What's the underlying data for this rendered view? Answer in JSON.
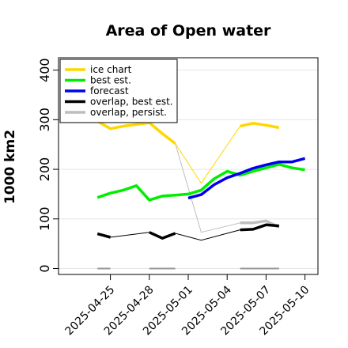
{
  "chart_data": {
    "type": "line",
    "title": "Area of Open water",
    "xlabel": "",
    "ylabel": "1000 km2",
    "ylim": [
      -12,
      425
    ],
    "yticks": [
      0,
      100,
      200,
      300,
      400
    ],
    "x_start": "2025-04-21",
    "xlim": [
      "2025-04-21",
      "2025-05-11"
    ],
    "xticks": [
      "2025-04-25",
      "2025-04-28",
      "2025-05-01",
      "2025-05-04",
      "2025-05-07",
      "2025-05-10"
    ],
    "xtick_colors": [
      "#000000",
      "#000000",
      "#228B22",
      "#000000",
      "#000000",
      "#000000"
    ],
    "legend_position": "top-left",
    "series": [
      {
        "name": "ice chart",
        "color": "#FFD700",
        "segments": [
          [
            [
              "2025-04-24",
              297
            ],
            [
              "2025-04-25",
              282
            ],
            [
              "2025-04-26",
              287
            ],
            [
              "2025-04-28",
              294
            ],
            [
              "2025-04-29",
              272
            ],
            [
              "2025-04-30",
              252
            ]
          ],
          [
            [
              "2025-05-05",
              287
            ],
            [
              "2025-05-06",
              293
            ],
            [
              "2025-05-07",
              289
            ],
            [
              "2025-05-08",
              284
            ]
          ]
        ],
        "connectors": [
          [
            [
              "2025-04-30",
              252
            ],
            [
              "2025-05-02",
              172
            ],
            [
              "2025-05-05",
              287
            ]
          ]
        ]
      },
      {
        "name": "best est.",
        "color": "#00EE00",
        "segments": [
          [
            [
              "2025-04-24",
              143
            ],
            [
              "2025-04-25",
              152
            ],
            [
              "2025-04-26",
              158
            ],
            [
              "2025-04-27",
              167
            ],
            [
              "2025-04-28",
              138
            ],
            [
              "2025-04-29",
              146
            ],
            [
              "2025-04-30",
              148
            ],
            [
              "2025-05-01",
              150
            ],
            [
              "2025-05-02",
              158
            ],
            [
              "2025-05-03",
              181
            ],
            [
              "2025-05-04",
              196
            ],
            [
              "2025-05-05",
              188
            ],
            [
              "2025-05-06",
              196
            ],
            [
              "2025-05-07",
              203
            ],
            [
              "2025-05-08",
              210
            ],
            [
              "2025-05-09",
              203
            ],
            [
              "2025-05-10",
              199
            ]
          ]
        ],
        "connectors": []
      },
      {
        "name": "forecast",
        "color": "#0000EE",
        "segments": [
          [
            [
              "2025-05-01",
              142
            ],
            [
              "2025-05-02",
              149
            ],
            [
              "2025-05-03",
              169
            ],
            [
              "2025-05-04",
              183
            ],
            [
              "2025-05-05",
              192
            ],
            [
              "2025-05-06",
              202
            ],
            [
              "2025-05-07",
              209
            ],
            [
              "2025-05-08",
              215
            ],
            [
              "2025-05-09",
              215
            ],
            [
              "2025-05-10",
              222
            ]
          ]
        ],
        "connectors": []
      },
      {
        "name": "overlap, best est.",
        "color": "#000000",
        "segments": [
          [
            [
              "2025-04-24",
              70
            ],
            [
              "2025-04-25",
              63
            ]
          ],
          [
            [
              "2025-04-28",
              73
            ],
            [
              "2025-04-29",
              61
            ],
            [
              "2025-04-30",
              71
            ]
          ],
          [
            [
              "2025-05-05",
              78
            ],
            [
              "2025-05-06",
              79
            ],
            [
              "2025-05-07",
              88
            ],
            [
              "2025-05-08",
              86
            ]
          ]
        ],
        "connectors": [
          [
            [
              "2025-04-25",
              63
            ],
            [
              "2025-04-28",
              73
            ]
          ],
          [
            [
              "2025-04-30",
              71
            ],
            [
              "2025-05-02",
              57
            ],
            [
              "2025-05-05",
              78
            ]
          ]
        ]
      },
      {
        "name": "overlap, persist.",
        "color": "#BEBEBE",
        "segments": [
          [
            [
              "2025-05-05",
              92
            ],
            [
              "2025-05-06",
              92
            ],
            [
              "2025-05-07",
              96
            ],
            [
              "2025-05-08",
              83
            ]
          ]
        ],
        "connectors": [
          [
            [
              "2025-04-30",
              252
            ],
            [
              "2025-05-02",
              73
            ],
            [
              "2025-05-05",
              92
            ]
          ]
        ]
      }
    ],
    "baseline_markers": {
      "color": "#999999",
      "value": 0,
      "segments": [
        [
          "2025-04-24",
          "2025-04-25"
        ],
        [
          "2025-04-28",
          "2025-04-30"
        ],
        [
          "2025-05-05",
          "2025-05-08"
        ]
      ]
    }
  }
}
